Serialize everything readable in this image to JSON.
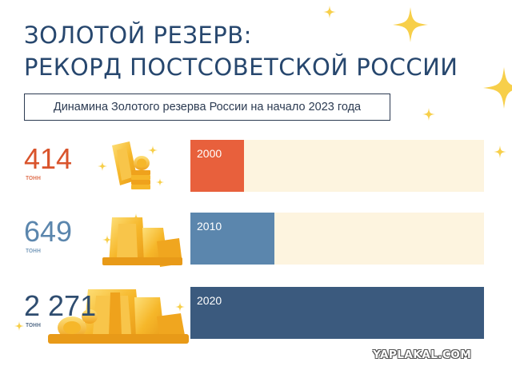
{
  "title_line1": "ЗОЛОТОЙ РЕЗЕРВ:",
  "title_line2": "РЕКОРД ПОСТСОВЕТСКОЙ РОССИИ",
  "subtitle": "Динамина Золотого резерва России на начало 2023 года",
  "watermark": "YAPLAKAL.COM",
  "colors": {
    "title": "#27476e",
    "track": "#fdf4df",
    "gold": "#f6b72a",
    "star": "#f7cf4a"
  },
  "chart_data": {
    "type": "bar",
    "orientation": "horizontal",
    "title": "ЗОЛОТОЙ РЕЗЕРВ: РЕКОРД ПОСТСОВЕТСКОЙ РОССИИ",
    "subtitle": "Динамина Золотого резерва России на начало 2023 года",
    "unit": "тонн",
    "categories": [
      "2000",
      "2010",
      "2020"
    ],
    "values": [
      414,
      649,
      2271
    ],
    "value_labels": [
      "414",
      "649",
      "2 271"
    ],
    "colors": [
      "#e8603c",
      "#5b86ad",
      "#3b5a7e"
    ],
    "value_colors": [
      "#d9542c",
      "#5b86ad",
      "#2f4d70"
    ],
    "xlim": [
      0,
      2271
    ],
    "grid": false,
    "legend": "none"
  }
}
